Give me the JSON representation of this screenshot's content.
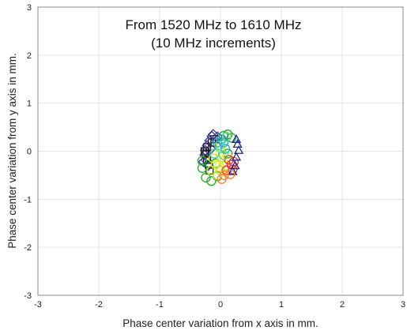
{
  "chart_data": {
    "type": "scatter",
    "title": "",
    "annotation_lines": [
      "From 1520 MHz to 1610 MHz",
      "(10 MHz increments)"
    ],
    "xlabel": "Phase center variation from x axis in mm.",
    "ylabel": "Phase center variation from y axis in mm.",
    "xlim": [
      -3,
      3
    ],
    "ylim": [
      -3,
      3
    ],
    "xticks": [
      "-3",
      "-2",
      "-1",
      "0",
      "1",
      "2",
      "3"
    ],
    "yticks": [
      "3",
      "2",
      "1",
      "0",
      "-1",
      "-2",
      "-3"
    ],
    "grid": true,
    "legend": "none",
    "series": [
      {
        "marker": "diamond",
        "color": "#3a3aa0",
        "points": [
          [
            -0.14,
            0.31
          ],
          [
            -0.18,
            0.22
          ],
          [
            -0.22,
            0.12
          ],
          [
            -0.25,
            0.02
          ],
          [
            -0.26,
            -0.08
          ],
          [
            -0.24,
            -0.18
          ],
          [
            -0.2,
            -0.3
          ],
          [
            -0.12,
            0.35
          ],
          [
            -0.05,
            0.3
          ],
          [
            -0.28,
            -0.22
          ],
          [
            -0.16,
            0.05
          ]
        ]
      },
      {
        "marker": "square",
        "color": "#222222",
        "points": [
          [
            -0.22,
            0.08
          ],
          [
            -0.24,
            -0.05
          ],
          [
            -0.22,
            -0.18
          ],
          [
            -0.19,
            -0.28
          ],
          [
            -0.14,
            0.18
          ],
          [
            -0.18,
            -0.4
          ],
          [
            -0.1,
            0.25
          ],
          [
            -0.26,
            0.0
          ]
        ]
      },
      {
        "marker": "circle",
        "color": "#22aa22",
        "points": [
          [
            -0.3,
            -0.35
          ],
          [
            -0.24,
            -0.55
          ],
          [
            -0.15,
            -0.62
          ],
          [
            -0.05,
            -0.52
          ],
          [
            -0.3,
            -0.2
          ],
          [
            0.05,
            0.32
          ],
          [
            0.12,
            0.35
          ],
          [
            0.18,
            0.28
          ],
          [
            0.12,
            -0.05
          ],
          [
            -0.08,
            -0.25
          ]
        ]
      },
      {
        "marker": "circle",
        "color": "#c8e62a",
        "points": [
          [
            -0.08,
            -0.28
          ],
          [
            0.0,
            -0.4
          ],
          [
            -0.12,
            -0.15
          ],
          [
            0.02,
            -0.12
          ],
          [
            0.08,
            -0.3
          ],
          [
            -0.05,
            -0.5
          ],
          [
            0.0,
            0.08
          ],
          [
            -0.15,
            -0.4
          ]
        ]
      },
      {
        "marker": "circle",
        "color": "#f0e64a",
        "points": [
          [
            0.05,
            -0.22
          ],
          [
            0.1,
            -0.38
          ],
          [
            -0.02,
            -0.32
          ],
          [
            0.12,
            -0.12
          ],
          [
            0.0,
            -0.02
          ]
        ]
      },
      {
        "marker": "circle",
        "color": "#e83030",
        "points": [
          [
            0.14,
            -0.18
          ],
          [
            0.18,
            -0.28
          ],
          [
            0.1,
            -0.4
          ],
          [
            0.22,
            -0.22
          ],
          [
            0.2,
            -0.38
          ]
        ]
      },
      {
        "marker": "circle",
        "color": "#1aa0e0",
        "points": [
          [
            0.05,
            0.18
          ],
          [
            0.08,
            0.05
          ],
          [
            0.02,
            0.25
          ],
          [
            -0.05,
            0.18
          ]
        ]
      },
      {
        "marker": "triangle",
        "color": "#1a2a88",
        "points": [
          [
            0.28,
            0.15
          ],
          [
            0.3,
            0.02
          ],
          [
            0.26,
            -0.12
          ],
          [
            0.24,
            -0.3
          ],
          [
            0.2,
            -0.42
          ],
          [
            0.26,
            0.25
          ]
        ]
      },
      {
        "marker": "circle",
        "color": "#44dd88",
        "points": [
          [
            0.1,
            0.3
          ],
          [
            -0.02,
            0.12
          ],
          [
            0.05,
            -0.08
          ],
          [
            -0.1,
            -0.05
          ]
        ]
      },
      {
        "marker": "circle",
        "color": "#ff7a30",
        "points": [
          [
            0.06,
            -0.5
          ],
          [
            0.16,
            -0.48
          ],
          [
            0.02,
            -0.58
          ]
        ]
      }
    ]
  }
}
